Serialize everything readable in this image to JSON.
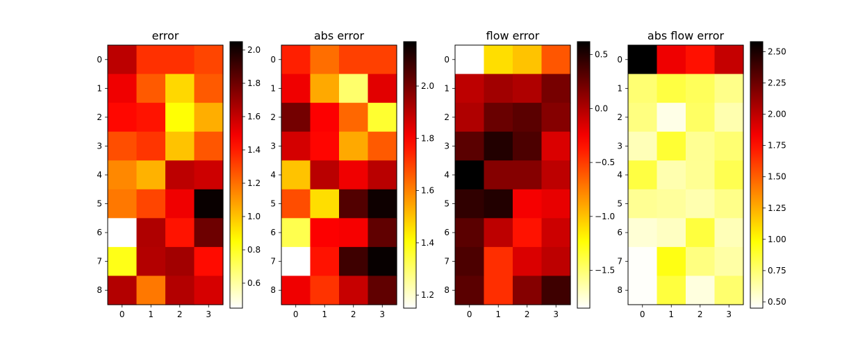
{
  "chart_data": [
    {
      "type": "heatmap",
      "title": "error",
      "colormap": "hot_r",
      "x_ticks": [
        "0",
        "1",
        "2",
        "3"
      ],
      "y_ticks": [
        "0",
        "1",
        "2",
        "3",
        "4",
        "5",
        "6",
        "7",
        "8"
      ],
      "value_range": [
        0.45,
        2.05
      ],
      "colorbar_ticks": [
        "0.6",
        "0.8",
        "1.0",
        "1.2",
        "1.4",
        "1.6",
        "1.8",
        "2.0"
      ],
      "colorbar_tick_values": [
        0.6,
        0.8,
        1.0,
        1.2,
        1.4,
        1.6,
        1.8,
        2.0
      ],
      "values": [
        [
          1.62,
          1.35,
          1.35,
          1.3
        ],
        [
          1.5,
          1.25,
          0.95,
          1.25
        ],
        [
          1.45,
          1.42,
          0.85,
          1.05
        ],
        [
          1.28,
          1.34,
          1.0,
          1.26
        ],
        [
          1.14,
          1.04,
          1.62,
          1.58
        ],
        [
          1.18,
          1.3,
          1.5,
          2.03
        ],
        [
          0.45,
          1.65,
          1.42,
          1.8
        ],
        [
          0.82,
          1.64,
          1.68,
          1.44
        ],
        [
          1.64,
          1.18,
          1.64,
          1.56
        ]
      ]
    },
    {
      "type": "heatmap",
      "title": "abs error",
      "colormap": "hot_r",
      "x_ticks": [
        "0",
        "1",
        "2",
        "3"
      ],
      "y_ticks": [
        "0",
        "1",
        "2",
        "3",
        "4",
        "5",
        "6",
        "7",
        "8"
      ],
      "value_range": [
        1.15,
        2.17
      ],
      "colorbar_ticks": [
        "1.2",
        "1.4",
        "1.6",
        "1.8",
        "2.0"
      ],
      "colorbar_tick_values": [
        1.2,
        1.4,
        1.6,
        1.8,
        2.0
      ],
      "values": [
        [
          1.75,
          1.63,
          1.7,
          1.7
        ],
        [
          1.82,
          1.54,
          1.3,
          1.84
        ],
        [
          2.0,
          1.8,
          1.64,
          1.36
        ],
        [
          1.86,
          1.79,
          1.54,
          1.66
        ],
        [
          1.5,
          1.9,
          1.82,
          1.9
        ],
        [
          1.68,
          1.46,
          2.05,
          2.15
        ],
        [
          1.33,
          1.8,
          1.81,
          2.03
        ],
        [
          1.15,
          1.77,
          2.08,
          2.16
        ],
        [
          1.82,
          1.72,
          1.88,
          2.03
        ]
      ]
    },
    {
      "type": "heatmap",
      "title": "flow error",
      "colormap": "hot_r",
      "x_ticks": [
        "0",
        "1",
        "2",
        "3"
      ],
      "y_ticks": [
        "0",
        "1",
        "2",
        "3",
        "4",
        "5",
        "6",
        "7",
        "8"
      ],
      "value_range": [
        -1.85,
        0.62
      ],
      "colorbar_ticks": [
        "0.5",
        "0.0",
        "−0.5",
        "−1.0",
        "−1.5"
      ],
      "colorbar_tick_values": [
        0.5,
        0.0,
        -0.5,
        -1.0,
        -1.5
      ],
      "values": [
        [
          -1.85,
          -1.1,
          -1.0,
          -0.6
        ],
        [
          -0.05,
          0.05,
          0.0,
          0.2
        ],
        [
          0.0,
          0.25,
          0.3,
          0.15
        ],
        [
          0.3,
          0.5,
          0.35,
          -0.15
        ],
        [
          0.62,
          0.15,
          0.15,
          -0.05
        ],
        [
          0.45,
          0.5,
          -0.25,
          -0.2
        ],
        [
          0.3,
          -0.05,
          -0.35,
          -0.1
        ],
        [
          0.35,
          -0.45,
          -0.15,
          -0.05
        ],
        [
          0.3,
          -0.45,
          0.15,
          0.4
        ]
      ]
    },
    {
      "type": "heatmap",
      "title": "abs flow error",
      "colormap": "hot_r",
      "x_ticks": [
        "0",
        "1",
        "2",
        "3"
      ],
      "y_ticks": [
        "0",
        "1",
        "2",
        "3",
        "4",
        "5",
        "6",
        "7",
        "8"
      ],
      "value_range": [
        0.45,
        2.58
      ],
      "colorbar_ticks": [
        "0.50",
        "0.75",
        "1.00",
        "1.25",
        "1.50",
        "1.75",
        "2.00",
        "2.25",
        "2.50"
      ],
      "colorbar_tick_values": [
        0.5,
        0.75,
        1.0,
        1.25,
        1.5,
        1.75,
        2.0,
        2.25,
        2.5
      ],
      "values": [
        [
          2.58,
          1.85,
          1.75,
          1.98
        ],
        [
          0.75,
          0.85,
          0.8,
          0.7
        ],
        [
          0.72,
          0.5,
          0.78,
          0.62
        ],
        [
          0.6,
          0.88,
          0.68,
          0.75
        ],
        [
          0.85,
          0.62,
          0.68,
          0.82
        ],
        [
          0.68,
          0.66,
          0.62,
          0.7
        ],
        [
          0.54,
          0.58,
          0.86,
          0.6
        ],
        [
          0.46,
          0.95,
          0.72,
          0.64
        ],
        [
          0.46,
          0.86,
          0.52,
          0.76
        ]
      ]
    }
  ]
}
